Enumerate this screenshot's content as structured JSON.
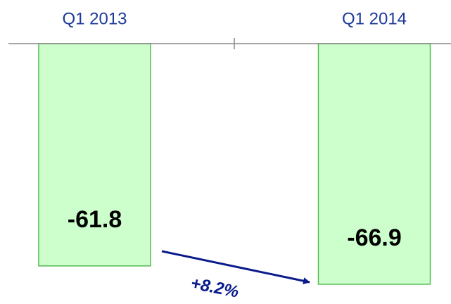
{
  "chart_data": {
    "type": "bar",
    "categories": [
      "Q1 2013",
      "Q1 2014"
    ],
    "values": [
      -61.8,
      -66.9
    ],
    "color": "#ccffcc",
    "ylim": [
      -72,
      0
    ],
    "annotation": "+8.2%"
  }
}
